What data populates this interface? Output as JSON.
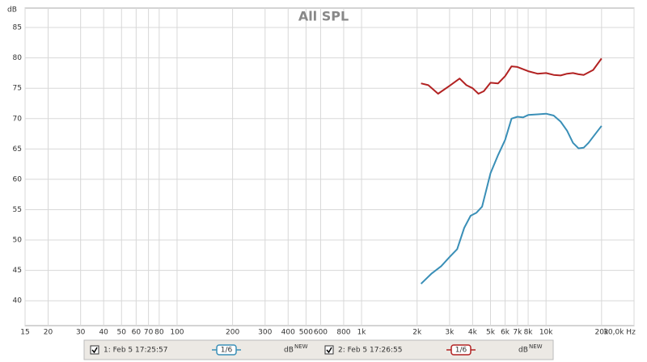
{
  "chart_data": {
    "type": "line",
    "title": "All SPL",
    "y_label": "dB",
    "log_x": true,
    "grid": true,
    "xlim": [
      15,
      30000
    ],
    "ylim": [
      35.9,
      88.2
    ],
    "xticks": [
      15,
      20,
      30,
      40,
      50,
      60,
      70,
      80,
      100,
      200,
      300,
      400,
      500,
      600,
      800,
      {
        "value": 1000,
        "label": "1k"
      },
      {
        "value": 2000,
        "label": "2k"
      },
      {
        "value": 3000,
        "label": "3k"
      },
      {
        "value": 4000,
        "label": "4k"
      },
      {
        "value": 5000,
        "label": "5k"
      },
      {
        "value": 6000,
        "label": "6k"
      },
      {
        "value": 7000,
        "label": "7k"
      },
      {
        "value": 8000,
        "label": "8k"
      },
      {
        "value": 10000,
        "label": "10k"
      },
      {
        "value": 20000,
        "label": "20k"
      },
      {
        "value": 30000,
        "label": "30,0k Hz"
      }
    ],
    "yticks": [
      40,
      45,
      50,
      55,
      60,
      65,
      70,
      75,
      80,
      85
    ],
    "series": [
      {
        "name": "1: Feb 5 17:25:57",
        "color": "#3a8fb7",
        "smoothing": "1/6",
        "unit": "dB",
        "badge": "NEW",
        "x": [
          2100,
          2400,
          2700,
          3000,
          3300,
          3600,
          3900,
          4200,
          4500,
          5000,
          5500,
          6000,
          6500,
          7000,
          7500,
          8000,
          9000,
          10000,
          11000,
          12000,
          13000,
          14000,
          15000,
          16000,
          17000,
          18000,
          20000
        ],
        "values": [
          42.8,
          44.5,
          45.7,
          47.2,
          48.5,
          52,
          54,
          54.5,
          55.5,
          61,
          64,
          66.5,
          70,
          70.3,
          70.2,
          70.6,
          70.7,
          70.8,
          70.5,
          69.5,
          68,
          66,
          65.1,
          65.2,
          66,
          67,
          68.8
        ]
      },
      {
        "name": "2: Feb 5 17:26:55",
        "color": "#b22222",
        "smoothing": "1/6",
        "unit": "dB",
        "badge": "NEW",
        "x": [
          2100,
          2300,
          2600,
          3000,
          3400,
          3700,
          4000,
          4300,
          4600,
          5000,
          5500,
          6000,
          6500,
          7000,
          8000,
          9000,
          10000,
          11000,
          12000,
          13000,
          14000,
          15000,
          16000,
          18000,
          20000
        ],
        "values": [
          75.8,
          75.5,
          74.1,
          75.4,
          76.6,
          75.5,
          75,
          74.1,
          74.5,
          75.9,
          75.8,
          77,
          78.6,
          78.5,
          77.8,
          77.4,
          77.5,
          77.2,
          77.1,
          77.4,
          77.5,
          77.3,
          77.2,
          78,
          79.9
        ]
      }
    ]
  }
}
